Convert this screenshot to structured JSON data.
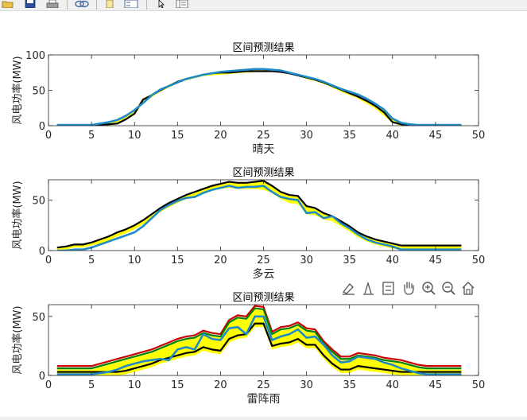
{
  "toolbar": {
    "items": [
      "open-icon",
      "save-icon",
      "print-icon",
      "link-icon",
      "insert-colorbar-icon",
      "insert-legend-icon",
      "pointer-icon",
      "property-inspector-icon"
    ]
  },
  "axes_toolbar": {
    "items": [
      "brush-icon",
      "data-tip-icon",
      "legend-toggle-icon",
      "pan-hand-icon",
      "zoom-in-icon",
      "zoom-out-icon",
      "home-icon"
    ]
  },
  "chart_data": [
    {
      "type": "area",
      "title": "区间预测结果",
      "xlabel": "晴天",
      "ylabel": "风电功率(MW)",
      "xlim": [
        0,
        50
      ],
      "ylim": [
        0,
        100
      ],
      "xticks": [
        0,
        5,
        10,
        15,
        20,
        25,
        30,
        35,
        40,
        45,
        50
      ],
      "yticks": [
        0,
        50,
        100
      ],
      "grid": false,
      "x": [
        1,
        2,
        3,
        4,
        5,
        6,
        7,
        8,
        9,
        10,
        11,
        12,
        13,
        14,
        15,
        16,
        17,
        18,
        19,
        20,
        21,
        22,
        23,
        24,
        25,
        26,
        27,
        28,
        29,
        30,
        31,
        32,
        33,
        34,
        35,
        36,
        37,
        38,
        39,
        40,
        41,
        42,
        43,
        44,
        45,
        46,
        47,
        48
      ],
      "band": {
        "color": "#ffff00",
        "upper": [
          1,
          1,
          1,
          1,
          1,
          2,
          4,
          8,
          14,
          22,
          38,
          45,
          52,
          58,
          63,
          67,
          70,
          73,
          75,
          76,
          77,
          78,
          79,
          80,
          80,
          79,
          78,
          76,
          73,
          70,
          67,
          63,
          58,
          53,
          48,
          43,
          37,
          30,
          22,
          10,
          4,
          2,
          1,
          1,
          1,
          1,
          1,
          1
        ],
        "lower": [
          0,
          0,
          0,
          0,
          0,
          0,
          0,
          3,
          8,
          15,
          32,
          40,
          48,
          54,
          60,
          64,
          67,
          70,
          71,
          72,
          73,
          74,
          75,
          76,
          76,
          76,
          75,
          73,
          70,
          66,
          63,
          59,
          54,
          48,
          43,
          38,
          31,
          24,
          14,
          4,
          0,
          0,
          0,
          0,
          0,
          0,
          0,
          0
        ]
      },
      "series": [
        {
          "color": "#000000",
          "values": [
            1,
            1,
            1,
            1,
            1,
            1,
            2,
            3,
            9,
            17,
            37,
            43,
            50,
            56,
            62,
            66,
            69,
            72,
            74,
            75,
            75,
            76,
            77,
            77,
            77,
            77,
            76,
            74,
            71,
            68,
            65,
            61,
            56,
            51,
            46,
            41,
            35,
            28,
            19,
            5,
            2,
            1,
            1,
            1,
            1,
            1,
            1,
            1
          ]
        },
        {
          "color": "#1f8ac8",
          "values": [
            1,
            1,
            1,
            1,
            1,
            3,
            5,
            8,
            14,
            22,
            32,
            43,
            51,
            56,
            61,
            66,
            69,
            72,
            74,
            76,
            77,
            78,
            79,
            80,
            80,
            79,
            78,
            75,
            72,
            69,
            66,
            62,
            57,
            52,
            48,
            44,
            38,
            31,
            23,
            10,
            4,
            2,
            1,
            1,
            1,
            1,
            1,
            1
          ]
        }
      ]
    },
    {
      "type": "area",
      "title": "区间预测结果",
      "xlabel": "多云",
      "ylabel": "风电功率(MW)",
      "xlim": [
        0,
        50
      ],
      "ylim": [
        0,
        70
      ],
      "xticks": [
        0,
        5,
        10,
        15,
        20,
        25,
        30,
        35,
        40,
        45,
        50
      ],
      "yticks": [
        0,
        50
      ],
      "grid": false,
      "x": [
        1,
        2,
        3,
        4,
        5,
        6,
        7,
        8,
        9,
        10,
        11,
        12,
        13,
        14,
        15,
        16,
        17,
        18,
        19,
        20,
        21,
        22,
        23,
        24,
        25,
        26,
        27,
        28,
        29,
        30,
        31,
        32,
        33,
        34,
        35,
        36,
        37,
        38,
        39,
        40,
        41,
        42,
        43,
        44,
        45,
        46,
        47,
        48
      ],
      "band": {
        "color": "#ffff00",
        "upper": [
          3,
          4,
          6,
          6,
          8,
          11,
          14,
          18,
          21,
          25,
          30,
          36,
          42,
          47,
          51,
          55,
          58,
          61,
          64,
          66,
          68,
          67,
          67,
          68,
          69,
          64,
          58,
          55,
          54,
          44,
          42,
          37,
          34,
          29,
          24,
          18,
          14,
          11,
          9,
          7,
          5,
          5,
          5,
          5,
          5,
          5,
          5,
          5
        ],
        "lower": [
          1,
          1,
          3,
          3,
          5,
          7,
          10,
          14,
          17,
          21,
          26,
          32,
          38,
          43,
          47,
          51,
          53,
          56,
          59,
          61,
          62,
          61,
          61,
          61,
          60,
          57,
          51,
          47,
          46,
          36,
          35,
          31,
          29,
          24,
          19,
          13,
          9,
          6,
          4,
          2,
          1,
          1,
          1,
          1,
          1,
          1,
          1,
          1
        ]
      },
      "series": [
        {
          "color": "#000000",
          "values": [
            3,
            4,
            6,
            6,
            8,
            11,
            14,
            18,
            21,
            25,
            30,
            36,
            42,
            47,
            51,
            55,
            58,
            61,
            64,
            66,
            68,
            67,
            67,
            68,
            69,
            64,
            58,
            55,
            54,
            44,
            42,
            37,
            34,
            29,
            24,
            18,
            14,
            11,
            9,
            7,
            5,
            5,
            5,
            5,
            5,
            5,
            5,
            5
          ]
        },
        {
          "color": "#1f8ac8",
          "values": [
            0,
            0,
            1,
            1,
            3,
            6,
            9,
            12,
            15,
            18,
            24,
            32,
            40,
            45,
            49,
            52,
            53,
            57,
            60,
            62,
            64,
            62,
            63,
            63,
            64,
            58,
            53,
            51,
            50,
            37,
            38,
            32,
            34,
            27,
            22,
            16,
            11,
            8,
            6,
            4,
            1,
            1,
            1,
            1,
            1,
            1,
            1,
            1
          ]
        }
      ]
    },
    {
      "type": "area",
      "title": "区间预测结果",
      "xlabel": "雷阵雨",
      "ylabel": "风电功率(MW)",
      "xlim": [
        0,
        50
      ],
      "ylim": [
        0,
        60
      ],
      "xticks": [
        0,
        5,
        10,
        15,
        20,
        25,
        30,
        35,
        40,
        45,
        50
      ],
      "yticks": [
        0,
        50
      ],
      "grid": false,
      "x": [
        1,
        2,
        3,
        4,
        5,
        6,
        7,
        8,
        9,
        10,
        11,
        12,
        13,
        14,
        15,
        16,
        17,
        18,
        19,
        20,
        21,
        22,
        23,
        24,
        25,
        26,
        27,
        28,
        29,
        30,
        31,
        32,
        33,
        34,
        35,
        36,
        37,
        38,
        39,
        40,
        41,
        42,
        43,
        44,
        45,
        46,
        47,
        48
      ],
      "band": {
        "color": "#ffff00",
        "upper": [
          5,
          5,
          5,
          5,
          5,
          7,
          9,
          11,
          13,
          15,
          17,
          19,
          22,
          25,
          28,
          30,
          31,
          35,
          33,
          32,
          44,
          48,
          47,
          56,
          55,
          34,
          38,
          39,
          42,
          37,
          36,
          26,
          19,
          13,
          13,
          16,
          15,
          14,
          12,
          11,
          10,
          8,
          6,
          5,
          5,
          5,
          5,
          5
        ],
        "lower": [
          0,
          0,
          0,
          0,
          0,
          0,
          0,
          0,
          1,
          3,
          5,
          7,
          10,
          12,
          14,
          16,
          17,
          21,
          19,
          18,
          28,
          31,
          32,
          41,
          41,
          22,
          24,
          25,
          28,
          23,
          23,
          14,
          7,
          2,
          2,
          5,
          4,
          3,
          2,
          1,
          0,
          0,
          0,
          0,
          0,
          0,
          0,
          0
        ]
      },
      "series": [
        {
          "color": "#cc0000",
          "values": [
            8,
            8,
            8,
            8,
            8,
            10,
            12,
            14,
            16,
            18,
            20,
            22,
            25,
            28,
            31,
            33,
            34,
            38,
            36,
            35,
            47,
            51,
            50,
            59,
            58,
            37,
            41,
            42,
            45,
            40,
            39,
            29,
            22,
            16,
            16,
            19,
            18,
            17,
            15,
            14,
            13,
            11,
            9,
            8,
            8,
            8,
            8,
            8
          ]
        },
        {
          "color": "#008000",
          "values": [
            6,
            6,
            6,
            6,
            6,
            8,
            10,
            12,
            14,
            16,
            18,
            20,
            23,
            26,
            29,
            31,
            32,
            36,
            34,
            33,
            45,
            49,
            48,
            57,
            56,
            35,
            39,
            40,
            43,
            38,
            37,
            27,
            20,
            14,
            14,
            17,
            16,
            15,
            13,
            12,
            11,
            9,
            7,
            6,
            6,
            6,
            6,
            6
          ]
        },
        {
          "color": "#000000",
          "values": [
            3,
            3,
            3,
            3,
            3,
            3,
            3,
            3,
            4,
            6,
            8,
            10,
            13,
            15,
            17,
            19,
            20,
            24,
            22,
            21,
            31,
            34,
            35,
            44,
            44,
            25,
            27,
            28,
            31,
            26,
            26,
            17,
            10,
            5,
            5,
            8,
            7,
            6,
            5,
            4,
            3,
            3,
            3,
            3,
            3,
            3,
            3,
            3
          ]
        },
        {
          "color": "#1f8ac8",
          "values": [
            1,
            1,
            1,
            1,
            1,
            2,
            3,
            5,
            8,
            10,
            12,
            13,
            14,
            13,
            22,
            24,
            22,
            35,
            31,
            30,
            40,
            41,
            35,
            50,
            50,
            30,
            33,
            35,
            39,
            32,
            33,
            26,
            17,
            11,
            12,
            16,
            15,
            14,
            11,
            9,
            6,
            4,
            2,
            1,
            1,
            1,
            1,
            1
          ]
        }
      ]
    }
  ]
}
